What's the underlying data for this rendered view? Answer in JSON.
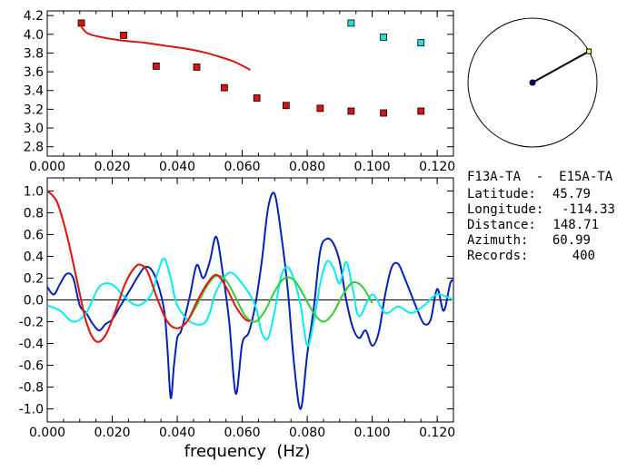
{
  "station_info": {
    "pair": "F13A-TA  -  E15A-TA",
    "rows": [
      {
        "label": "Latitude:",
        "value": "45.79"
      },
      {
        "label": "Longitude:",
        "value": "-114.33"
      },
      {
        "label": "Distance:",
        "value": "148.71"
      },
      {
        "label": "Azimuth:",
        "value": "60.99"
      },
      {
        "label": "Records:",
        "value": "400"
      }
    ]
  },
  "azimuth_dial": {
    "azimuth_deg": 60.99,
    "marker_color": "#ffff66",
    "center_color": "#000088"
  },
  "chart_data": [
    {
      "type": "scatter",
      "xlim": [
        0,
        0.125
      ],
      "ylim": [
        2.7,
        4.25
      ],
      "x_ticks": [
        0,
        0.02,
        0.04,
        0.06,
        0.08,
        0.1,
        0.12
      ],
      "x_tick_labels": [
        "0.000",
        "0.020",
        "0.040",
        "0.060",
        "0.080",
        "0.100",
        "0.120"
      ],
      "y_ticks": [
        2.8,
        3.0,
        3.2,
        3.4,
        3.6,
        3.8,
        4.0,
        4.2
      ],
      "y_tick_labels": [
        "2.8",
        "3.0",
        "3.2",
        "3.4",
        "3.6",
        "3.8",
        "4.0",
        "4.2"
      ],
      "xlabel": "",
      "ylabel": "",
      "series": [
        {
          "marker": "square",
          "color": "#dd1111",
          "x": [
            0.0105,
            0.0235,
            0.0335,
            0.046,
            0.0545,
            0.0645,
            0.0735,
            0.084,
            0.0935,
            0.1035,
            0.115
          ],
          "y": [
            4.12,
            3.99,
            3.66,
            3.65,
            3.43,
            3.32,
            3.24,
            3.21,
            3.18,
            3.16,
            3.18
          ]
        },
        {
          "marker": "square",
          "color": "#22dddd",
          "x": [
            0.0935,
            0.1035,
            0.115
          ],
          "y": [
            4.12,
            3.97,
            3.91
          ]
        },
        {
          "marker": "line",
          "color": "#dd1111",
          "x": [
            0.0105,
            0.012,
            0.014,
            0.018,
            0.024,
            0.03,
            0.036,
            0.042,
            0.048,
            0.054,
            0.058,
            0.0625
          ],
          "y": [
            4.08,
            4.02,
            3.99,
            3.96,
            3.93,
            3.91,
            3.88,
            3.85,
            3.81,
            3.75,
            3.7,
            3.62
          ]
        }
      ]
    },
    {
      "type": "line",
      "xlim": [
        0,
        0.125
      ],
      "ylim": [
        -1.12,
        1.12
      ],
      "x_ticks": [
        0,
        0.02,
        0.04,
        0.06,
        0.08,
        0.1,
        0.12
      ],
      "x_tick_labels": [
        "0.000",
        "0.020",
        "0.040",
        "0.060",
        "0.080",
        "0.100",
        "0.120"
      ],
      "y_ticks": [
        1.0,
        0.8,
        0.6,
        0.4,
        0.2,
        0.0,
        -0.2,
        -0.4,
        -0.6,
        -0.8,
        -1.0
      ],
      "y_tick_labels": [
        "1.0",
        "0.8",
        "0.6",
        "0.4",
        "0.2",
        "0.0",
        "-0.2",
        "-0.4",
        "-0.6",
        "-0.8",
        "-1.0"
      ],
      "xlabel": "frequency  (Hz)",
      "ylabel": "",
      "zero_line": true,
      "series": [
        {
          "color": "#0022bb",
          "x": [
            0,
            0.002,
            0.004,
            0.006,
            0.008,
            0.01,
            0.012,
            0.014,
            0.016,
            0.018,
            0.02,
            0.022,
            0.024,
            0.026,
            0.028,
            0.03,
            0.032,
            0.034,
            0.036,
            0.037,
            0.038,
            0.039,
            0.04,
            0.041,
            0.042,
            0.044,
            0.046,
            0.048,
            0.05,
            0.052,
            0.054,
            0.056,
            0.058,
            0.06,
            0.062,
            0.064,
            0.066,
            0.068,
            0.07,
            0.072,
            0.074,
            0.076,
            0.078,
            0.08,
            0.082,
            0.084,
            0.086,
            0.088,
            0.09,
            0.092,
            0.094,
            0.096,
            0.098,
            0.1,
            0.102,
            0.104,
            0.106,
            0.108,
            0.11,
            0.112,
            0.114,
            0.116,
            0.118,
            0.12,
            0.122,
            0.124,
            0.125
          ],
          "y": [
            0.12,
            0.05,
            0.15,
            0.24,
            0.2,
            -0.05,
            -0.12,
            -0.22,
            -0.28,
            -0.22,
            -0.18,
            -0.08,
            0.02,
            0.12,
            0.22,
            0.3,
            0.28,
            0.15,
            -0.1,
            -0.45,
            -0.9,
            -0.6,
            -0.35,
            -0.3,
            -0.2,
            0.05,
            0.32,
            0.2,
            0.35,
            0.58,
            0.25,
            -0.2,
            -0.86,
            -0.4,
            -0.3,
            -0.05,
            0.35,
            0.85,
            0.97,
            0.6,
            0.1,
            -0.6,
            -1.0,
            -0.5,
            -0.08,
            0.45,
            0.56,
            0.52,
            0.35,
            0.0,
            -0.25,
            -0.35,
            -0.28,
            -0.42,
            -0.3,
            0.05,
            0.3,
            0.33,
            0.2,
            0.05,
            -0.1,
            -0.22,
            -0.18,
            0.1,
            -0.1,
            0.15,
            0.18
          ]
        },
        {
          "color": "#00eeee",
          "x": [
            0,
            0.004,
            0.008,
            0.012,
            0.016,
            0.02,
            0.024,
            0.028,
            0.032,
            0.034,
            0.036,
            0.038,
            0.04,
            0.044,
            0.048,
            0.05,
            0.052,
            0.056,
            0.06,
            0.064,
            0.066,
            0.068,
            0.07,
            0.072,
            0.074,
            0.076,
            0.078,
            0.08,
            0.082,
            0.084,
            0.086,
            0.088,
            0.09,
            0.092,
            0.094,
            0.096,
            0.1,
            0.104,
            0.108,
            0.112,
            0.116,
            0.12,
            0.125
          ],
          "y": [
            -0.05,
            -0.1,
            -0.2,
            -0.12,
            0.12,
            0.14,
            0.02,
            -0.05,
            0.05,
            0.25,
            0.38,
            0.2,
            -0.05,
            -0.2,
            -0.22,
            -0.12,
            0.08,
            0.25,
            0.15,
            -0.05,
            -0.3,
            -0.35,
            -0.1,
            0.22,
            0.3,
            0.18,
            -0.05,
            -0.42,
            -0.2,
            0.15,
            0.35,
            0.3,
            0.15,
            0.35,
            0.1,
            -0.15,
            0.05,
            -0.12,
            -0.06,
            -0.12,
            -0.05,
            0.05,
            0.0
          ]
        },
        {
          "color": "#33cc33",
          "x": [
            0,
            0.003,
            0.006,
            0.009,
            0.012,
            0.015,
            0.018,
            0.021,
            0.024,
            0.027,
            0.029,
            0.031,
            0.034,
            0.037,
            0.04,
            0.043,
            0.046,
            0.049,
            0.052,
            0.055,
            0.058,
            0.061,
            0.064,
            0.067,
            0.07,
            0.073,
            0.076,
            0.079,
            0.082,
            0.085,
            0.088,
            0.091,
            0.094,
            0.097,
            0.1
          ],
          "y": [
            1.0,
            0.9,
            0.6,
            0.2,
            -0.2,
            -0.38,
            -0.32,
            -0.1,
            0.15,
            0.3,
            0.32,
            0.25,
            0.0,
            -0.2,
            -0.26,
            -0.2,
            -0.05,
            0.12,
            0.22,
            0.18,
            0.02,
            -0.15,
            -0.2,
            -0.1,
            0.08,
            0.2,
            0.18,
            0.04,
            -0.12,
            -0.2,
            -0.12,
            0.05,
            0.16,
            0.12,
            -0.03
          ]
        },
        {
          "color": "#ee1111",
          "x": [
            0,
            0.003,
            0.006,
            0.009,
            0.012,
            0.015,
            0.018,
            0.021,
            0.024,
            0.027,
            0.029,
            0.031,
            0.034,
            0.037,
            0.04,
            0.043,
            0.046,
            0.049,
            0.052,
            0.055,
            0.058,
            0.061,
            0.0625
          ],
          "y": [
            1.0,
            0.9,
            0.6,
            0.2,
            -0.2,
            -0.38,
            -0.32,
            -0.1,
            0.15,
            0.3,
            0.32,
            0.25,
            0.0,
            -0.2,
            -0.26,
            -0.2,
            -0.02,
            0.14,
            0.23,
            0.12,
            -0.06,
            -0.18,
            -0.19
          ]
        }
      ]
    }
  ]
}
